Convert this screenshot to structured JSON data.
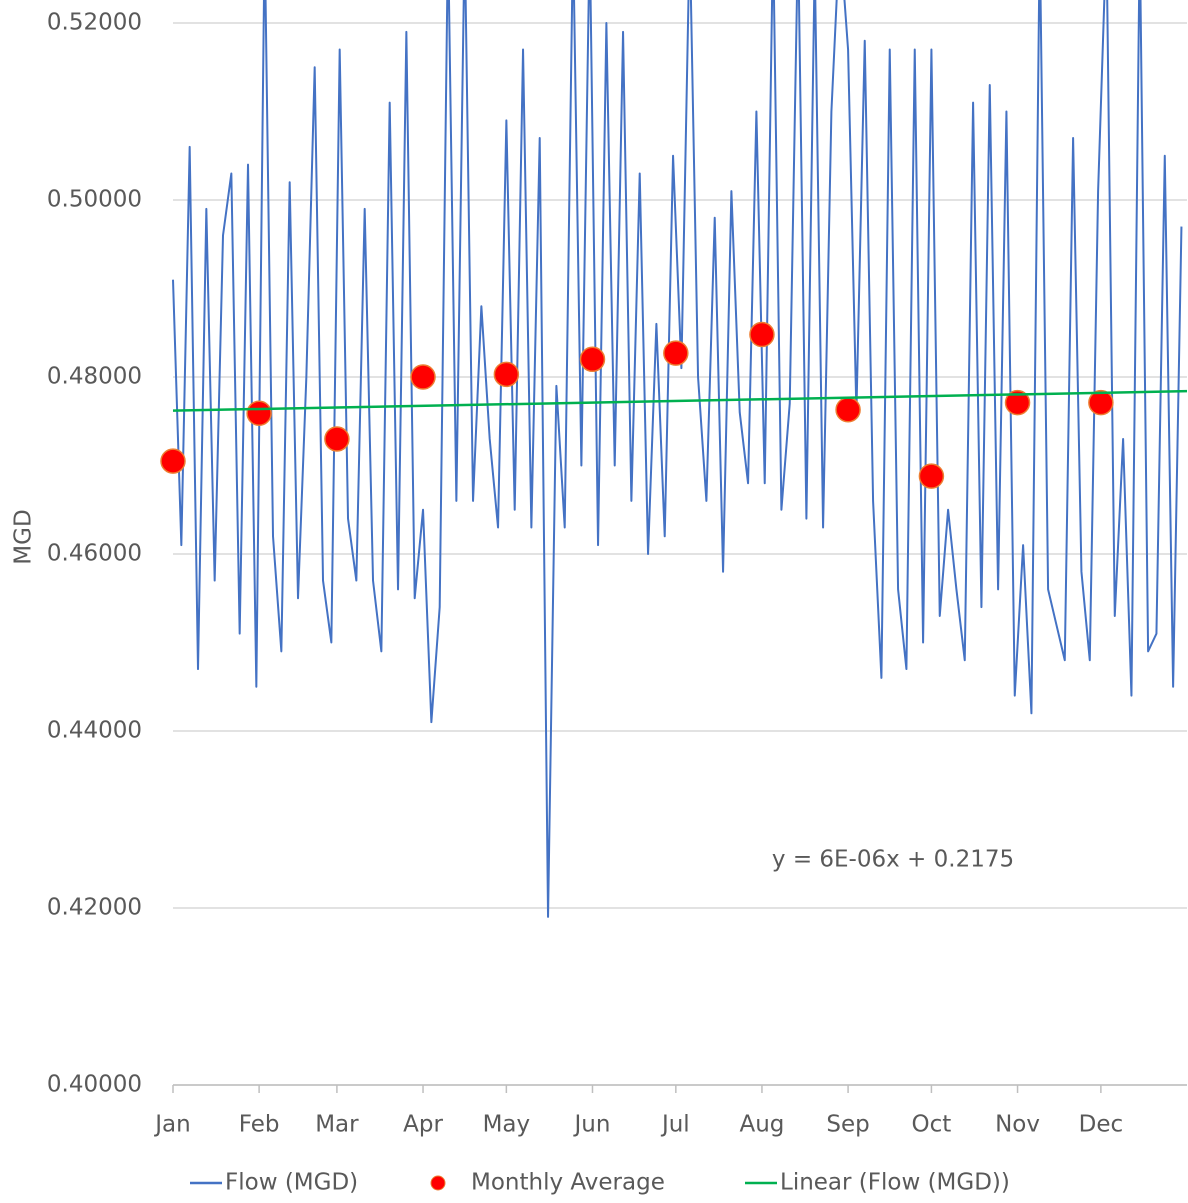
{
  "chart_data": {
    "type": "line",
    "y_label": "MGD",
    "annotation": "y = 6E-06x + 0.2175",
    "xlim": [
      0,
      365
    ],
    "xticks": [
      {
        "value": 0,
        "label": "Jan"
      },
      {
        "value": 31,
        "label": "Feb"
      },
      {
        "value": 59,
        "label": "Mar"
      },
      {
        "value": 90,
        "label": "Apr"
      },
      {
        "value": 120,
        "label": "May"
      },
      {
        "value": 151,
        "label": "Jun"
      },
      {
        "value": 181,
        "label": "Jul"
      },
      {
        "value": 212,
        "label": "Aug"
      },
      {
        "value": 243,
        "label": "Sep"
      },
      {
        "value": 273,
        "label": "Oct"
      },
      {
        "value": 304,
        "label": "Nov"
      },
      {
        "value": 334,
        "label": "Dec"
      }
    ],
    "ylim": [
      0.4,
      0.5226
    ],
    "yticks": [
      {
        "value": 0.4,
        "label": "0.40000"
      },
      {
        "value": 0.42,
        "label": "0.42000"
      },
      {
        "value": 0.44,
        "label": "0.44000"
      },
      {
        "value": 0.46,
        "label": "0.46000"
      },
      {
        "value": 0.48,
        "label": "0.48000"
      },
      {
        "value": 0.5,
        "label": "0.50000"
      },
      {
        "value": 0.52,
        "label": "0.52000"
      }
    ],
    "grid": true,
    "legend": "bottom",
    "series": [
      {
        "name": "Flow (MGD)",
        "type": "line",
        "color": "#4472c4",
        "x": [
          0,
          3,
          6,
          9,
          12,
          15,
          18,
          21,
          24,
          27,
          30,
          33,
          36,
          39,
          42,
          45,
          48,
          51,
          54,
          57,
          60,
          63,
          66,
          69,
          72,
          75,
          78,
          81,
          84,
          87,
          90,
          93,
          96,
          99,
          102,
          105,
          108,
          111,
          114,
          117,
          120,
          123,
          126,
          129,
          132,
          135,
          138,
          141,
          144,
          147,
          150,
          153,
          156,
          159,
          162,
          165,
          168,
          171,
          174,
          177,
          180,
          183,
          186,
          189,
          192,
          195,
          198,
          201,
          204,
          207,
          210,
          213,
          216,
          219,
          222,
          225,
          228,
          231,
          234,
          237,
          240,
          243,
          246,
          249,
          252,
          255,
          258,
          261,
          264,
          267,
          270,
          273,
          276,
          279,
          282,
          285,
          288,
          291,
          294,
          297,
          300,
          303,
          306,
          309,
          312,
          315,
          318,
          321,
          324,
          327,
          330,
          333,
          336,
          339,
          342,
          345,
          348,
          351,
          354,
          357,
          360,
          363
        ],
        "values": [
          0.491,
          0.461,
          0.506,
          0.447,
          0.499,
          0.457,
          0.496,
          0.503,
          0.451,
          0.504,
          0.445,
          0.53,
          0.462,
          0.449,
          0.502,
          0.455,
          0.48,
          0.515,
          0.457,
          0.45,
          0.517,
          0.464,
          0.457,
          0.499,
          0.457,
          0.449,
          0.511,
          0.456,
          0.519,
          0.455,
          0.465,
          0.441,
          0.454,
          0.53,
          0.466,
          0.53,
          0.466,
          0.488,
          0.473,
          0.463,
          0.509,
          0.465,
          0.517,
          0.463,
          0.507,
          0.419,
          0.479,
          0.463,
          0.53,
          0.47,
          0.53,
          0.461,
          0.52,
          0.47,
          0.519,
          0.466,
          0.503,
          0.46,
          0.486,
          0.462,
          0.505,
          0.481,
          0.53,
          0.48,
          0.466,
          0.498,
          0.458,
          0.501,
          0.476,
          0.468,
          0.51,
          0.468,
          0.53,
          0.465,
          0.477,
          0.53,
          0.464,
          0.527,
          0.463,
          0.51,
          0.53,
          0.517,
          0.476,
          0.518,
          0.466,
          0.446,
          0.517,
          0.456,
          0.447,
          0.517,
          0.45,
          0.517,
          0.453,
          0.465,
          0.456,
          0.448,
          0.511,
          0.454,
          0.513,
          0.456,
          0.51,
          0.444,
          0.461,
          0.442,
          0.53,
          0.456,
          0.452,
          0.448,
          0.507,
          0.458,
          0.448,
          0.501,
          0.53,
          0.453,
          0.473,
          0.444,
          0.53,
          0.449,
          0.451,
          0.505,
          0.445,
          0.497
        ]
      },
      {
        "name": "Monthly Average",
        "type": "scatter",
        "color": "#ff0000",
        "edge_color": "#ed7d31",
        "x": [
          0,
          31,
          59,
          90,
          120,
          151,
          181,
          212,
          243,
          273,
          304,
          334
        ],
        "values": [
          0.4705,
          0.4759,
          0.473,
          0.48,
          0.4803,
          0.482,
          0.4827,
          0.4848,
          0.4763,
          0.4688,
          0.4771,
          0.4771
        ]
      },
      {
        "name": "Linear (Flow (MGD))",
        "type": "line",
        "color": "#00b050",
        "x": [
          0,
          365
        ],
        "values": [
          0.4762,
          0.4784
        ]
      }
    ]
  }
}
